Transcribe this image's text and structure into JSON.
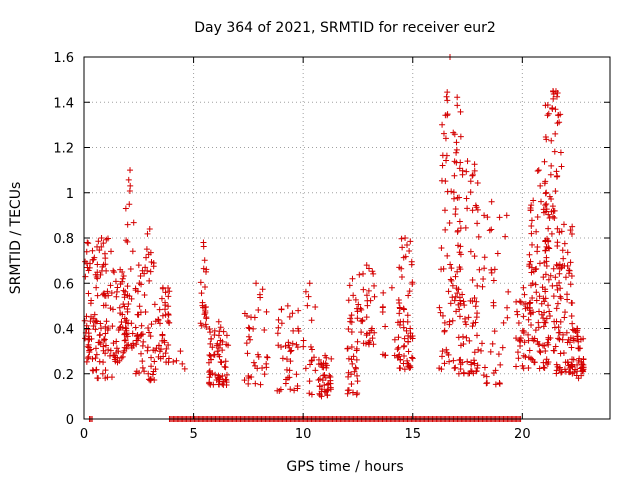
{
  "chart_data": {
    "type": "scatter",
    "title": "Day 364 of 2021, SRMTID for receiver eur2",
    "xlabel": "GPS time / hours",
    "ylabel": "SRMTID / TECUs",
    "xlim": [
      0,
      24
    ],
    "ylim": [
      0,
      1.6
    ],
    "xticks": [
      0,
      5,
      10,
      15,
      20
    ],
    "xtick_labels": [
      "0",
      "5",
      "10",
      "15",
      "20"
    ],
    "yticks": [
      0,
      0.2,
      0.4,
      0.6,
      0.8,
      1.0,
      1.2,
      1.4,
      1.6
    ],
    "ytick_labels": [
      "0",
      "0.2",
      "0.4",
      "0.6",
      "0.8",
      "1",
      "1.2",
      "1.4",
      "1.6"
    ],
    "grid": true,
    "marker": "plus",
    "marker_color": "#d40000",
    "series": [
      {
        "name": "eur2",
        "clusters": [
          {
            "x0": 0.0,
            "x1": 0.3,
            "ymin": 0.25,
            "ymax": 0.78,
            "n": 30
          },
          {
            "x0": 0.3,
            "x1": 1.3,
            "ymin": 0.18,
            "ymax": 0.8,
            "n": 90
          },
          {
            "x0": 1.3,
            "x1": 2.0,
            "ymin": 0.25,
            "ymax": 0.66,
            "n": 55
          },
          {
            "x0": 1.9,
            "x1": 2.3,
            "ymin": 0.3,
            "ymax": 1.1,
            "n": 30
          },
          {
            "x0": 2.3,
            "x1": 2.7,
            "ymin": 0.2,
            "ymax": 0.68,
            "n": 30
          },
          {
            "x0": 2.7,
            "x1": 3.3,
            "ymin": 0.17,
            "ymax": 0.84,
            "n": 40
          },
          {
            "x0": 3.3,
            "x1": 3.9,
            "ymin": 0.25,
            "ymax": 0.58,
            "n": 40
          },
          {
            "x0": 4.0,
            "x1": 4.8,
            "ymin": 0.22,
            "ymax": 0.3,
            "n": 4
          },
          {
            "x0": 5.3,
            "x1": 5.6,
            "ymin": 0.4,
            "ymax": 0.78,
            "n": 22
          },
          {
            "x0": 5.7,
            "x1": 6.6,
            "ymin": 0.15,
            "ymax": 0.43,
            "n": 65
          },
          {
            "x0": 7.3,
            "x1": 8.4,
            "ymin": 0.15,
            "ymax": 0.6,
            "n": 35
          },
          {
            "x0": 8.8,
            "x1": 9.8,
            "ymin": 0.12,
            "ymax": 0.5,
            "n": 40
          },
          {
            "x0": 10.0,
            "x1": 10.6,
            "ymin": 0.1,
            "ymax": 0.6,
            "n": 18
          },
          {
            "x0": 10.7,
            "x1": 11.3,
            "ymin": 0.1,
            "ymax": 0.28,
            "n": 40
          },
          {
            "x0": 12.0,
            "x1": 12.5,
            "ymin": 0.1,
            "ymax": 0.62,
            "n": 40
          },
          {
            "x0": 12.5,
            "x1": 13.3,
            "ymin": 0.33,
            "ymax": 0.68,
            "n": 35
          },
          {
            "x0": 13.6,
            "x1": 14.5,
            "ymin": 0.28,
            "ymax": 0.58,
            "n": 15
          },
          {
            "x0": 14.3,
            "x1": 15.0,
            "ymin": 0.22,
            "ymax": 0.8,
            "n": 60
          },
          {
            "x0": 16.2,
            "x1": 17.2,
            "ymin": 0.22,
            "ymax": 1.6,
            "n": 85
          },
          {
            "x0": 17.0,
            "x1": 18.0,
            "ymin": 0.2,
            "ymax": 1.14,
            "n": 75
          },
          {
            "x0": 17.8,
            "x1": 19.4,
            "ymin": 0.15,
            "ymax": 0.96,
            "n": 50
          },
          {
            "x0": 19.7,
            "x1": 20.4,
            "ymin": 0.22,
            "ymax": 0.58,
            "n": 40
          },
          {
            "x0": 20.3,
            "x1": 21.2,
            "ymin": 0.22,
            "ymax": 1.1,
            "n": 90
          },
          {
            "x0": 21.0,
            "x1": 21.8,
            "ymin": 0.3,
            "ymax": 1.45,
            "n": 90
          },
          {
            "x0": 21.5,
            "x1": 22.3,
            "ymin": 0.2,
            "ymax": 0.86,
            "n": 70
          },
          {
            "x0": 22.2,
            "x1": 22.8,
            "ymin": 0.18,
            "ymax": 0.4,
            "n": 45
          }
        ],
        "zero_ranges": [
          [
            0.25,
            0.4
          ],
          [
            3.9,
            19.95
          ]
        ]
      }
    ]
  }
}
